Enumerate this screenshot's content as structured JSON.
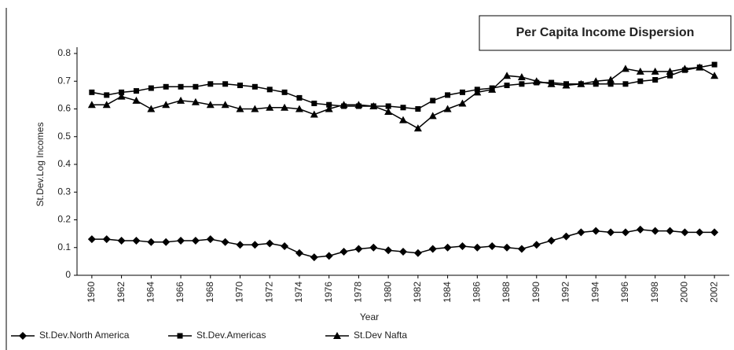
{
  "chart_data": {
    "type": "line",
    "title": "Per Capita Income Dispersion",
    "x_label": "Year",
    "y_label": "St.Dev.Log Incomes",
    "x": [
      1960,
      1961,
      1962,
      1963,
      1964,
      1965,
      1966,
      1967,
      1968,
      1969,
      1970,
      1971,
      1972,
      1973,
      1974,
      1975,
      1976,
      1977,
      1978,
      1979,
      1980,
      1981,
      1982,
      1983,
      1984,
      1985,
      1986,
      1987,
      1988,
      1989,
      1990,
      1991,
      1992,
      1993,
      1994,
      1995,
      1996,
      1997,
      1998,
      1999,
      2000,
      2001,
      2002
    ],
    "series": [
      {
        "name": "St.Dev.North America",
        "color": "#000000",
        "marker": "diamond",
        "values": [
          0.13,
          0.13,
          0.125,
          0.125,
          0.12,
          0.12,
          0.125,
          0.125,
          0.13,
          0.12,
          0.11,
          0.11,
          0.115,
          0.105,
          0.08,
          0.065,
          0.07,
          0.085,
          0.095,
          0.1,
          0.09,
          0.085,
          0.08,
          0.095,
          0.1,
          0.105,
          0.1,
          0.105,
          0.1,
          0.095,
          0.11,
          0.125,
          0.14,
          0.155,
          0.16,
          0.155,
          0.155,
          0.165,
          0.16,
          0.16,
          0.155,
          0.155,
          0.155
        ]
      },
      {
        "name": "St.Dev.Americas",
        "color": "#000000",
        "marker": "square",
        "values": [
          0.66,
          0.65,
          0.66,
          0.665,
          0.675,
          0.68,
          0.68,
          0.68,
          0.69,
          0.69,
          0.685,
          0.68,
          0.67,
          0.66,
          0.64,
          0.62,
          0.615,
          0.61,
          0.61,
          0.61,
          0.61,
          0.605,
          0.6,
          0.63,
          0.65,
          0.66,
          0.67,
          0.675,
          0.685,
          0.69,
          0.695,
          0.695,
          0.69,
          0.69,
          0.69,
          0.69,
          0.69,
          0.7,
          0.705,
          0.72,
          0.74,
          0.75,
          0.76
        ]
      },
      {
        "name": "St.Dev Nafta",
        "color": "#000000",
        "marker": "triangle",
        "values": [
          0.615,
          0.615,
          0.645,
          0.63,
          0.6,
          0.615,
          0.63,
          0.625,
          0.615,
          0.615,
          0.6,
          0.6,
          0.605,
          0.605,
          0.6,
          0.58,
          0.6,
          0.615,
          0.615,
          0.61,
          0.59,
          0.56,
          0.53,
          0.575,
          0.6,
          0.62,
          0.66,
          0.67,
          0.72,
          0.715,
          0.7,
          0.69,
          0.685,
          0.69,
          0.7,
          0.705,
          0.745,
          0.735,
          0.735,
          0.735,
          0.745,
          0.75,
          0.72
        ]
      }
    ],
    "xlim": [
      1959,
      2003
    ],
    "xticks": [
      1960,
      1962,
      1964,
      1966,
      1968,
      1970,
      1972,
      1974,
      1976,
      1978,
      1980,
      1982,
      1984,
      1986,
      1988,
      1990,
      1992,
      1994,
      1996,
      1998,
      2000,
      2002
    ],
    "ylim": [
      0,
      0.8
    ],
    "yticks": [
      0,
      0.1,
      0.2,
      0.3,
      0.4,
      0.5,
      0.6,
      0.7,
      0.8
    ],
    "grid": false,
    "legend": "bottom"
  }
}
